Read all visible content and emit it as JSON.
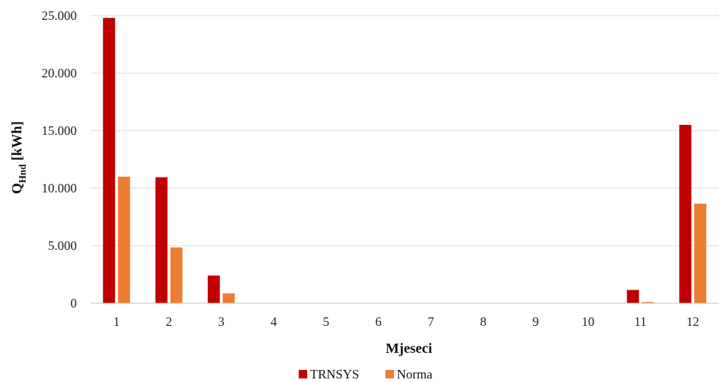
{
  "chart_data": {
    "type": "bar",
    "categories": [
      "1",
      "2",
      "3",
      "4",
      "5",
      "6",
      "7",
      "8",
      "9",
      "10",
      "11",
      "12"
    ],
    "series": [
      {
        "name": "TRNSYS",
        "color": "#c00000",
        "values": [
          24800,
          10950,
          2400,
          0,
          0,
          0,
          0,
          0,
          0,
          0,
          1150,
          15500
        ]
      },
      {
        "name": "Norma",
        "color": "#ed7d31",
        "values": [
          11000,
          4850,
          850,
          0,
          0,
          0,
          0,
          0,
          0,
          0,
          100,
          8650
        ]
      }
    ],
    "ylim": [
      0,
      25000
    ],
    "yticks": [
      0,
      5000,
      10000,
      15000,
      20000,
      25000
    ],
    "ytick_labels": [
      "0",
      "5.000",
      "10.000",
      "15.000",
      "20.000",
      "25.000"
    ],
    "ylabel": {
      "main": "Q",
      "sub": "Hnd",
      "rest": " [kWh]"
    },
    "xlabel": "Mjeseci",
    "grid": true,
    "legend_position": "bottom"
  }
}
